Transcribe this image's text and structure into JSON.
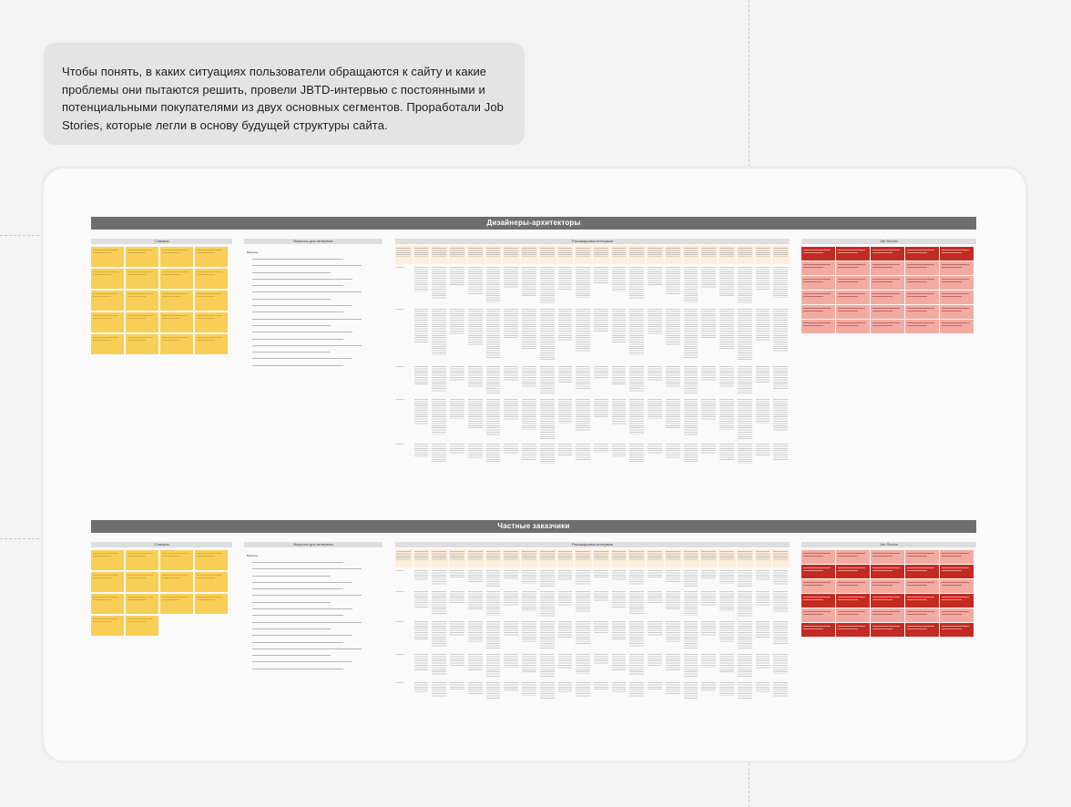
{
  "intro": {
    "text": "Чтобы понять, в каких ситуациях пользователи обращаются к сайту и какие проблемы они пытаются решить, провели JBTD-интервью с постоянными и потенциальными покупателями из двух основных сегментов. Проработали Job Stories, которые легли в основу будущей структуры сайта."
  },
  "sections": [
    {
      "title": "Дизайнеры-архитекторы",
      "columns": {
        "stickers": "Стикеры",
        "questions": "Вопросы для интервью",
        "decode": "Расшифровка интервью",
        "stories": "Job Stories"
      },
      "questions_head": "Вопросы"
    },
    {
      "title": "Частные заказчики",
      "columns": {
        "stickers": "Стикеры",
        "questions": "Вопросы для интервью",
        "decode": "Расшифровка интервью",
        "stories": "Job Stories"
      },
      "questions_head": "Вопросы"
    }
  ],
  "colors": {
    "background": "#f3f3f3",
    "intro_bg": "#e4e4e4",
    "band": "#6e6e6e",
    "sticky": "#f9ce56",
    "story_light": "#f3aaa0",
    "story_dark": "#c32a22",
    "decode_header": "#fdeedb"
  }
}
